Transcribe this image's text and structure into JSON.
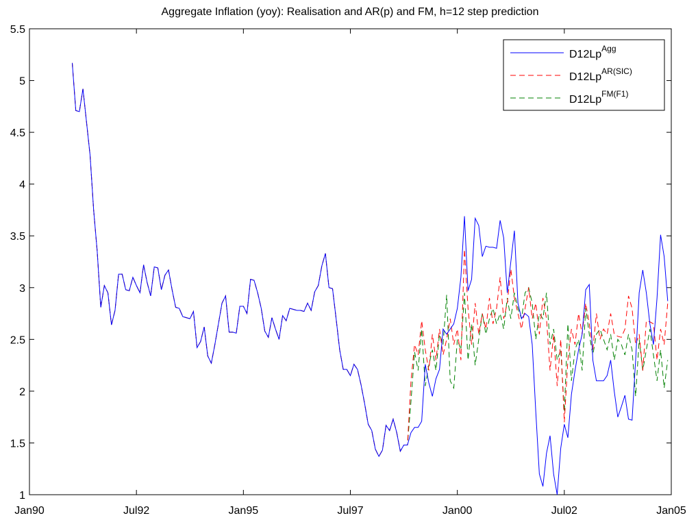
{
  "chart_data": {
    "type": "line",
    "title": "Aggregate Inflation (yoy): Realisation and AR(p) and  FM, h=12 step prediction",
    "x": [
      "1991-01",
      "1991-02",
      "1991-03",
      "1991-04",
      "1991-05",
      "1991-06",
      "1991-07",
      "1991-08",
      "1991-09",
      "1991-10",
      "1991-11",
      "1991-12",
      "1992-01",
      "1992-02",
      "1992-03",
      "1992-04",
      "1992-05",
      "1992-06",
      "1992-07",
      "1992-08",
      "1992-09",
      "1992-10",
      "1992-11",
      "1992-12",
      "1993-01",
      "1993-02",
      "1993-03",
      "1993-04",
      "1993-05",
      "1993-06",
      "1993-07",
      "1993-08",
      "1993-09",
      "1993-10",
      "1993-11",
      "1993-12",
      "1994-01",
      "1994-02",
      "1994-03",
      "1994-04",
      "1994-05",
      "1994-06",
      "1994-07",
      "1994-08",
      "1994-09",
      "1994-10",
      "1994-11",
      "1994-12",
      "1995-01",
      "1995-02",
      "1995-03",
      "1995-04",
      "1995-05",
      "1995-06",
      "1995-07",
      "1995-08",
      "1995-09",
      "1995-10",
      "1995-11",
      "1995-12",
      "1996-01",
      "1996-02",
      "1996-03",
      "1996-04",
      "1996-05",
      "1996-06",
      "1996-07",
      "1996-08",
      "1996-09",
      "1996-10",
      "1996-11",
      "1996-12",
      "1997-01",
      "1997-02",
      "1997-03",
      "1997-04",
      "1997-05",
      "1997-06",
      "1997-07",
      "1997-08",
      "1997-09",
      "1997-10",
      "1997-11",
      "1997-12",
      "1998-01",
      "1998-02",
      "1998-03",
      "1998-04",
      "1998-05",
      "1998-06",
      "1998-07",
      "1998-08",
      "1998-09",
      "1998-10",
      "1998-11",
      "1998-12",
      "1999-01",
      "1999-02",
      "1999-03",
      "1999-04",
      "1999-05",
      "1999-06",
      "1999-07",
      "1999-08",
      "1999-09",
      "1999-10",
      "1999-11",
      "1999-12",
      "2000-01",
      "2000-02",
      "2000-03",
      "2000-04",
      "2000-05",
      "2000-06",
      "2000-07",
      "2000-08",
      "2000-09",
      "2000-10",
      "2000-11",
      "2000-12",
      "2001-01",
      "2001-02",
      "2001-03",
      "2001-04",
      "2001-05",
      "2001-06",
      "2001-07",
      "2001-08",
      "2001-09",
      "2001-10",
      "2001-11",
      "2001-12",
      "2002-01",
      "2002-02",
      "2002-03",
      "2002-04",
      "2002-05",
      "2002-06",
      "2002-07",
      "2002-08",
      "2002-09",
      "2002-10",
      "2002-11",
      "2002-12",
      "2003-01",
      "2003-02",
      "2003-03",
      "2003-04",
      "2003-05",
      "2003-06",
      "2003-07",
      "2003-08",
      "2003-09",
      "2003-10",
      "2003-11",
      "2003-12",
      "2004-01",
      "2004-02",
      "2004-03",
      "2004-04",
      "2004-05",
      "2004-06",
      "2004-07",
      "2004-08",
      "2004-09",
      "2004-10",
      "2004-11",
      "2004-12"
    ],
    "series": [
      {
        "name": "D12Lp",
        "name_superscript": "Agg",
        "color": "#0000ff",
        "dashed": false,
        "values": [
          5.17,
          4.71,
          4.7,
          4.92,
          4.6,
          4.28,
          3.75,
          3.35,
          2.81,
          3.02,
          2.95,
          2.64,
          2.78,
          3.13,
          3.13,
          2.98,
          2.97,
          3.1,
          3.02,
          2.95,
          3.22,
          3.05,
          2.92,
          3.2,
          3.19,
          2.98,
          3.12,
          3.17,
          2.98,
          2.81,
          2.8,
          2.72,
          2.71,
          2.7,
          2.77,
          2.42,
          2.48,
          2.62,
          2.34,
          2.27,
          2.45,
          2.65,
          2.85,
          2.92,
          2.57,
          2.57,
          2.56,
          2.82,
          2.82,
          2.75,
          3.08,
          3.07,
          2.95,
          2.8,
          2.58,
          2.52,
          2.71,
          2.6,
          2.5,
          2.73,
          2.68,
          2.8,
          2.79,
          2.78,
          2.78,
          2.77,
          2.85,
          2.78,
          2.96,
          3.02,
          3.21,
          3.33,
          3.0,
          2.99,
          2.7,
          2.4,
          2.21,
          2.21,
          2.15,
          2.26,
          2.21,
          2.06,
          1.88,
          1.68,
          1.62,
          1.44,
          1.37,
          1.43,
          1.67,
          1.62,
          1.73,
          1.6,
          1.42,
          1.48,
          1.48,
          1.6,
          1.65,
          1.65,
          1.71,
          2.26,
          2.08,
          1.95,
          2.12,
          2.21,
          2.6,
          2.55,
          2.6,
          2.65,
          2.8,
          3.1,
          3.69,
          2.97,
          3.08,
          3.67,
          3.6,
          3.3,
          3.4,
          3.39,
          3.39,
          3.38,
          3.65,
          3.48,
          2.95,
          3.25,
          3.55,
          2.85,
          2.7,
          2.75,
          2.72,
          2.45,
          1.8,
          1.2,
          1.08,
          1.4,
          1.57,
          1.2,
          1.0,
          1.45,
          1.68,
          1.55,
          1.97,
          2.2,
          2.4,
          2.55,
          2.98,
          3.03,
          2.3,
          2.1,
          2.1,
          2.1,
          2.15,
          2.3,
          2.0,
          1.75,
          1.85,
          1.96,
          1.73,
          1.72,
          2.3,
          2.95,
          3.17,
          2.95,
          2.65,
          2.45,
          2.9,
          3.51,
          3.3,
          2.87
        ]
      },
      {
        "name": "D12Lp",
        "name_superscript": "AR(SIC)",
        "color": "#ff0000",
        "dashed": true,
        "values": [
          5.17,
          4.71,
          4.7,
          4.92,
          4.6,
          4.28,
          3.75,
          3.35,
          2.81,
          3.02,
          2.95,
          2.64,
          2.78,
          3.13,
          3.13,
          2.98,
          2.97,
          3.1,
          3.02,
          2.95,
          3.22,
          3.05,
          2.92,
          3.2,
          3.19,
          2.98,
          3.12,
          3.17,
          2.98,
          2.81,
          2.8,
          2.72,
          2.71,
          2.7,
          2.77,
          2.42,
          2.48,
          2.62,
          2.34,
          2.27,
          2.45,
          2.65,
          2.85,
          2.92,
          2.57,
          2.57,
          2.56,
          2.82,
          2.82,
          2.75,
          3.08,
          3.07,
          2.95,
          2.8,
          2.58,
          2.52,
          2.71,
          2.6,
          2.5,
          2.73,
          2.68,
          2.8,
          2.79,
          2.78,
          2.78,
          2.77,
          2.85,
          2.78,
          2.96,
          3.02,
          3.21,
          3.33,
          3.0,
          2.99,
          2.7,
          2.4,
          2.21,
          2.21,
          2.15,
          2.26,
          2.21,
          2.06,
          1.88,
          1.68,
          1.62,
          1.44,
          1.37,
          1.43,
          1.67,
          1.62,
          1.73,
          1.6,
          1.42,
          1.48,
          1.48,
          2.1,
          2.45,
          2.35,
          2.68,
          2.4,
          2.2,
          2.55,
          2.3,
          2.6,
          2.35,
          2.5,
          2.7,
          2.45,
          2.6,
          2.3,
          3.37,
          2.8,
          2.45,
          2.85,
          2.55,
          2.75,
          2.6,
          2.9,
          2.65,
          2.8,
          3.1,
          2.7,
          2.85,
          3.18,
          2.9,
          2.75,
          2.6,
          2.8,
          3.0,
          2.7,
          2.85,
          2.55,
          2.9,
          2.7,
          2.2,
          2.55,
          2.05,
          2.5,
          1.7,
          2.3,
          2.6,
          2.45,
          2.75,
          2.55,
          2.85,
          2.65,
          2.4,
          2.75,
          2.5,
          2.6,
          2.55,
          2.75,
          2.55,
          2.53,
          2.52,
          2.6,
          2.92,
          2.8,
          2.45,
          2.55,
          2.2,
          2.68,
          2.67,
          2.65,
          2.3,
          2.6,
          2.45,
          2.85
        ]
      },
      {
        "name": "D12Lp",
        "name_superscript": "FM(F1)",
        "color": "#008000",
        "dashed": true,
        "values": [
          5.17,
          4.71,
          4.7,
          4.92,
          4.6,
          4.28,
          3.75,
          3.35,
          2.81,
          3.02,
          2.95,
          2.64,
          2.78,
          3.13,
          3.13,
          2.98,
          2.97,
          3.1,
          3.02,
          2.95,
          3.22,
          3.05,
          2.92,
          3.2,
          3.19,
          2.98,
          3.12,
          3.17,
          2.98,
          2.81,
          2.8,
          2.72,
          2.71,
          2.7,
          2.77,
          2.42,
          2.48,
          2.62,
          2.34,
          2.27,
          2.45,
          2.65,
          2.85,
          2.92,
          2.57,
          2.57,
          2.56,
          2.82,
          2.82,
          2.75,
          3.08,
          3.07,
          2.95,
          2.8,
          2.58,
          2.52,
          2.71,
          2.6,
          2.5,
          2.73,
          2.68,
          2.8,
          2.79,
          2.78,
          2.78,
          2.77,
          2.85,
          2.78,
          2.96,
          3.02,
          3.21,
          3.33,
          3.0,
          2.99,
          2.7,
          2.4,
          2.21,
          2.21,
          2.15,
          2.26,
          2.21,
          2.06,
          1.88,
          1.68,
          1.62,
          1.44,
          1.37,
          1.43,
          1.67,
          1.62,
          1.73,
          1.6,
          1.42,
          1.48,
          1.48,
          1.9,
          2.38,
          2.2,
          2.6,
          2.05,
          2.25,
          2.4,
          2.2,
          2.55,
          2.45,
          2.93,
          2.1,
          2.03,
          2.5,
          2.4,
          2.95,
          2.3,
          2.65,
          2.25,
          2.5,
          2.75,
          2.55,
          2.7,
          2.8,
          2.65,
          2.75,
          2.6,
          2.9,
          2.7,
          2.95,
          2.8,
          2.7,
          2.95,
          3.0,
          2.85,
          2.5,
          2.75,
          2.7,
          2.95,
          2.45,
          2.6,
          2.3,
          2.4,
          1.8,
          2.65,
          2.1,
          2.4,
          2.5,
          2.2,
          2.8,
          2.55,
          2.35,
          2.55,
          2.6,
          2.5,
          2.4,
          2.55,
          2.3,
          2.5,
          2.45,
          2.35,
          2.55,
          2.4,
          1.95,
          2.5,
          2.2,
          2.4,
          2.6,
          2.35,
          2.1,
          2.4,
          2.03,
          2.3
        ]
      }
    ],
    "xlim": [
      "1990-01",
      "2005-01"
    ],
    "xticks": [
      {
        "value": "1990-01",
        "label": "Jan90"
      },
      {
        "value": "1992-07",
        "label": "Jul92"
      },
      {
        "value": "1995-01",
        "label": "Jan95"
      },
      {
        "value": "1997-07",
        "label": "Jul97"
      },
      {
        "value": "2000-01",
        "label": "Jan00"
      },
      {
        "value": "2002-07",
        "label": "Jul02"
      },
      {
        "value": "2005-01",
        "label": "Jan05"
      }
    ],
    "ylim": [
      1,
      5.5
    ],
    "yticks": [
      1,
      1.5,
      2,
      2.5,
      3,
      3.5,
      4,
      4.5,
      5,
      5.5
    ],
    "grid": false,
    "legend": "upper-right"
  }
}
